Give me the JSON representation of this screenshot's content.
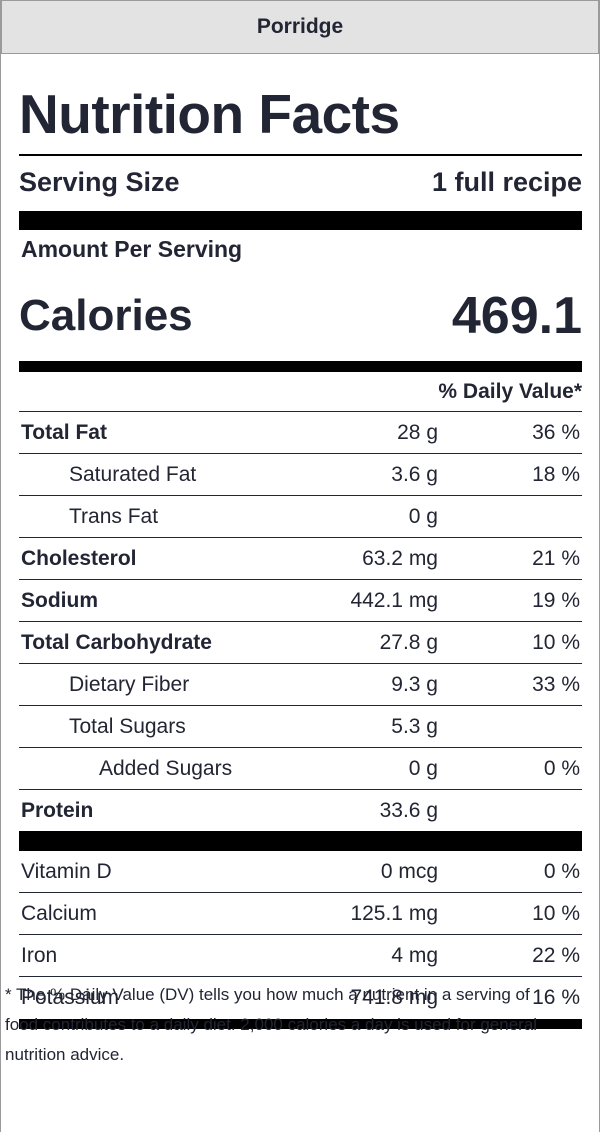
{
  "header": {
    "title": "Porridge"
  },
  "label": {
    "title": "Nutrition Facts",
    "serving_size_label": "Serving Size",
    "serving_size_value": "1 full recipe",
    "amount_per_serving": "Amount Per Serving",
    "calories_label": "Calories",
    "calories_value": "469.1",
    "daily_value_header": "% Daily Value*"
  },
  "nutrients": [
    {
      "name": "Total Fat",
      "amount": "28 g",
      "dv": "36 %",
      "bold": true,
      "indent": 0
    },
    {
      "name": "Saturated Fat",
      "amount": "3.6 g",
      "dv": "18 %",
      "bold": false,
      "indent": 1
    },
    {
      "name": "Trans Fat",
      "amount": "0 g",
      "dv": "",
      "bold": false,
      "indent": 1
    },
    {
      "name": "Cholesterol",
      "amount": "63.2 mg",
      "dv": "21 %",
      "bold": true,
      "indent": 0
    },
    {
      "name": "Sodium",
      "amount": "442.1 mg",
      "dv": "19 %",
      "bold": true,
      "indent": 0
    },
    {
      "name": "Total Carbohydrate",
      "amount": "27.8 g",
      "dv": "10 %",
      "bold": true,
      "indent": 0
    },
    {
      "name": "Dietary Fiber",
      "amount": "9.3 g",
      "dv": "33 %",
      "bold": false,
      "indent": 1
    },
    {
      "name": "Total Sugars",
      "amount": "5.3 g",
      "dv": "",
      "bold": false,
      "indent": 1
    },
    {
      "name": "Added Sugars",
      "amount": "0 g",
      "dv": "0 %",
      "bold": false,
      "indent": 2
    },
    {
      "name": "Protein",
      "amount": "33.6 g",
      "dv": "",
      "bold": true,
      "indent": 0
    }
  ],
  "vitamins": [
    {
      "name": "Vitamin D",
      "amount": "0 mcg",
      "dv": "0 %"
    },
    {
      "name": "Calcium",
      "amount": "125.1 mg",
      "dv": "10 %"
    },
    {
      "name": "Iron",
      "amount": "4 mg",
      "dv": "22 %"
    },
    {
      "name": "Potassium",
      "amount": "741.8 mg",
      "dv": "16 %"
    }
  ],
  "footnote": "* The % Daily Value (DV) tells you how much a nutrient in a serving of food contributes to a daily diet. 2,000 calories a day is used for general nutrition advice.",
  "colors": {
    "text": "#222533",
    "header_bg": "#e3e3e3",
    "rule": "#000000",
    "border": "#9a9a9a"
  }
}
